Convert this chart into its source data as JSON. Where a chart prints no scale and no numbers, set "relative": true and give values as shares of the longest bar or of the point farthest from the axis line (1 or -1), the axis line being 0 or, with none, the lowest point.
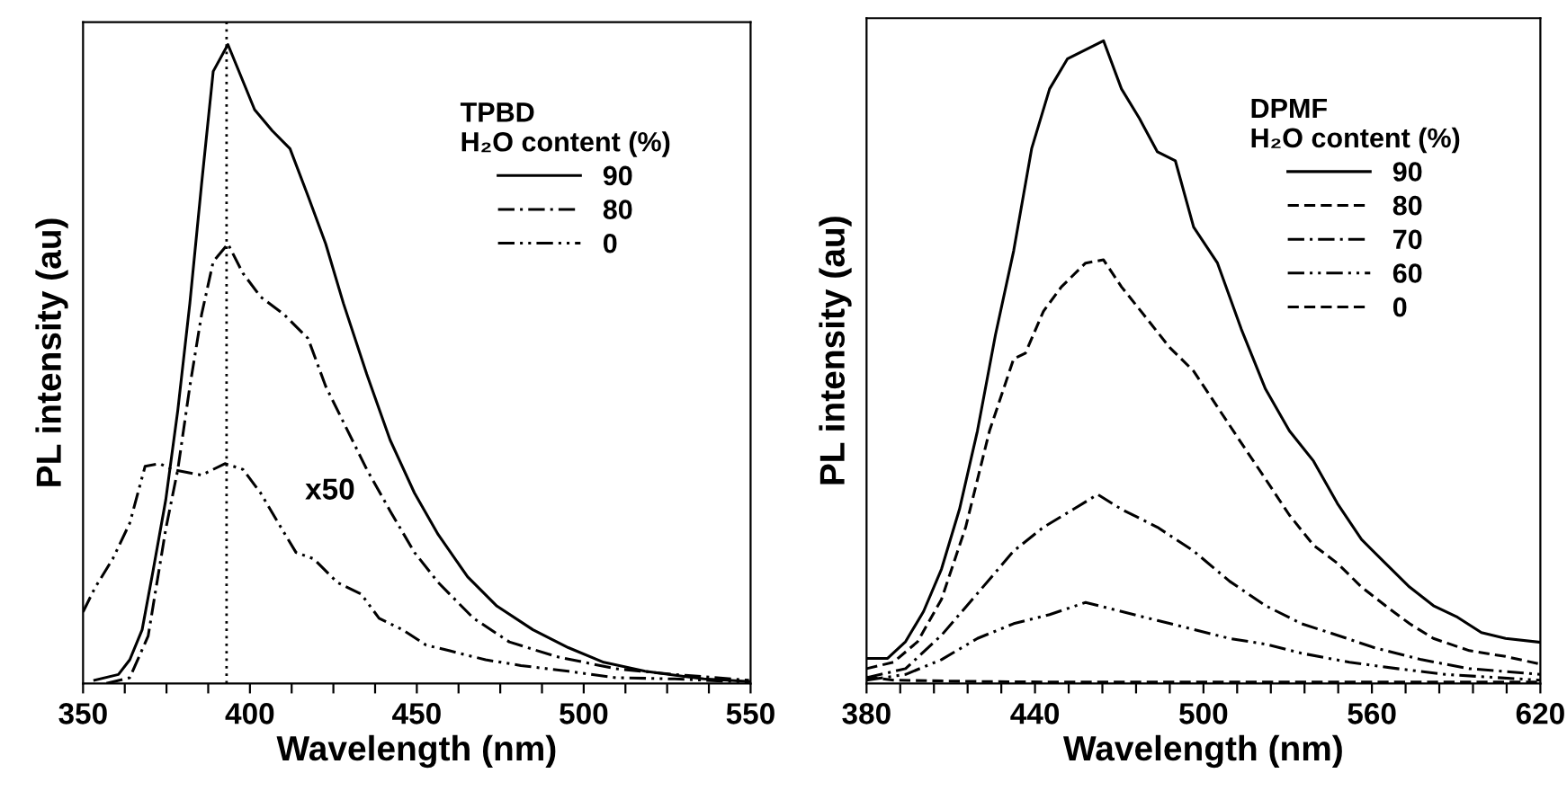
{
  "chart_data": [
    {
      "type": "line",
      "relative": true,
      "xlabel": "Wavelength (nm)",
      "ylabel": "PL intensity (au)",
      "legend_title": "TPBD\nH₂O content (%)",
      "legend": "top right",
      "grid": false,
      "tick_labels": "x",
      "marker": "none",
      "xlim": [
        350,
        550
      ],
      "xticks": [
        350,
        {
          "value": 362.5,
          "label": null
        },
        {
          "value": 375,
          "label": null
        },
        {
          "value": 387.5,
          "label": null
        },
        400,
        {
          "value": 412.5,
          "label": null
        },
        {
          "value": 425,
          "label": null
        },
        {
          "value": 437.5,
          "label": null
        },
        450,
        {
          "value": 462.5,
          "label": null
        },
        {
          "value": 475,
          "label": null
        },
        {
          "value": 487.5,
          "label": null
        },
        500,
        {
          "value": 512.5,
          "label": null
        },
        {
          "value": 525,
          "label": null
        },
        {
          "value": 537.5,
          "label": null
        },
        550
      ],
      "ref_lines": [
        {
          "axis": "x",
          "value": 393,
          "line_style": "dotted",
          "color": "#000000"
        }
      ],
      "annotations": [
        "x50"
      ],
      "series": [
        {
          "name": "90",
          "color": "#000000",
          "line_style": "solid",
          "x": [
            353.5,
            360.6,
            364,
            367.7,
            371,
            374.8,
            378.4,
            382,
            385.5,
            389,
            393.4,
            396,
            401.4,
            406.7,
            412,
            417.4,
            422.7,
            428,
            435,
            442,
            449.3,
            456.4,
            465.2,
            474,
            484.8,
            495.4,
            506,
            518.4,
            536,
            549.5
          ],
          "values": [
            0.005,
            0.014,
            0.037,
            0.084,
            0.177,
            0.288,
            0.428,
            0.595,
            0.781,
            0.958,
            1.0,
            0.967,
            0.898,
            0.865,
            0.837,
            0.763,
            0.688,
            0.595,
            0.484,
            0.381,
            0.298,
            0.233,
            0.167,
            0.121,
            0.084,
            0.056,
            0.033,
            0.019,
            0.007,
            0.003
          ]
        },
        {
          "name": "80",
          "color": "#000000",
          "line_style": "dashdot",
          "x": [
            357,
            364,
            369.5,
            374.8,
            378.4,
            382,
            385.5,
            389,
            393.4,
            397.9,
            403.2,
            410.3,
            417.4,
            422.7,
            428,
            435,
            442,
            449.3,
            456.4,
            467,
            477.7,
            491.8,
            509.6,
            527.3,
            549.5
          ],
          "values": [
            0.0,
            0.009,
            0.074,
            0.242,
            0.335,
            0.465,
            0.577,
            0.66,
            0.688,
            0.642,
            0.605,
            0.577,
            0.54,
            0.465,
            0.409,
            0.335,
            0.27,
            0.205,
            0.158,
            0.102,
            0.065,
            0.042,
            0.023,
            0.014,
            0.005
          ]
        },
        {
          "name": "0",
          "color": "#000000",
          "line_style": "dashdotdot",
          "x": [
            350,
            353.5,
            358.9,
            364,
            368.6,
            373,
            376.6,
            385.5,
            392.5,
            397.9,
            403.2,
            408.5,
            413.8,
            419.1,
            426.2,
            433.3,
            438.7,
            445.7,
            452.8,
            459.9,
            470.6,
            481.2,
            495.4,
            509.6,
            527.3,
            549.5
          ],
          "values": [
            0.112,
            0.149,
            0.195,
            0.251,
            0.34,
            0.344,
            0.335,
            0.326,
            0.344,
            0.335,
            0.298,
            0.251,
            0.205,
            0.195,
            0.158,
            0.14,
            0.102,
            0.084,
            0.06,
            0.051,
            0.037,
            0.028,
            0.019,
            0.009,
            0.007,
            0.002
          ]
        }
      ]
    },
    {
      "type": "line",
      "relative": true,
      "xlabel": "Wavelength (nm)",
      "ylabel": "PL intensity (au)",
      "legend_title": "DPMF\nH₂O content (%)",
      "legend": "top right",
      "grid": false,
      "tick_labels": "x",
      "marker": "none",
      "xlim": [
        380,
        620
      ],
      "xticks": [
        380,
        {
          "value": 392,
          "label": null
        },
        {
          "value": 404,
          "label": null
        },
        {
          "value": 416,
          "label": null
        },
        {
          "value": 428,
          "label": null
        },
        440,
        {
          "value": 452,
          "label": null
        },
        {
          "value": 464,
          "label": null
        },
        {
          "value": 476,
          "label": null
        },
        {
          "value": 488,
          "label": null
        },
        500,
        {
          "value": 512,
          "label": null
        },
        {
          "value": 524,
          "label": null
        },
        {
          "value": 536,
          "label": null
        },
        {
          "value": 548,
          "label": null
        },
        560,
        {
          "value": 572,
          "label": null
        },
        {
          "value": 584,
          "label": null
        },
        {
          "value": 596,
          "label": null
        },
        {
          "value": 608,
          "label": null
        },
        620
      ],
      "series": [
        {
          "name": "90",
          "color": "#000000",
          "line_style": "solid",
          "x": [
            380,
            387.5,
            393.9,
            400.3,
            406.7,
            413.1,
            419.5,
            425.9,
            432.4,
            438.8,
            445.2,
            451.6,
            458,
            464.4,
            470.8,
            477.2,
            483.6,
            490,
            496.5,
            505,
            513.5,
            522.1,
            530.6,
            539.2,
            547.7,
            556.3,
            564.8,
            573.4,
            581.9,
            590.5,
            599,
            607.6,
            620
          ],
          "values": [
            0.039,
            0.039,
            0.065,
            0.112,
            0.178,
            0.271,
            0.393,
            0.542,
            0.673,
            0.832,
            0.925,
            0.972,
            0.986,
            1.0,
            0.925,
            0.879,
            0.827,
            0.813,
            0.71,
            0.654,
            0.551,
            0.458,
            0.393,
            0.346,
            0.28,
            0.224,
            0.187,
            0.15,
            0.121,
            0.103,
            0.079,
            0.07,
            0.064
          ]
        },
        {
          "name": "80",
          "color": "#000000",
          "line_style": "dashed",
          "x": [
            380,
            389.6,
            398.2,
            406.7,
            415.3,
            423.8,
            432.4,
            436.6,
            443,
            449.4,
            458,
            464.4,
            470.8,
            479.4,
            487.9,
            496.5,
            505,
            513.5,
            522.1,
            530.6,
            539.2,
            547.7,
            556.3,
            564.8,
            573.4,
            581.9,
            594.7,
            607.6,
            620
          ],
          "values": [
            0.023,
            0.033,
            0.065,
            0.131,
            0.243,
            0.393,
            0.505,
            0.514,
            0.579,
            0.617,
            0.654,
            0.659,
            0.617,
            0.57,
            0.523,
            0.486,
            0.43,
            0.374,
            0.318,
            0.262,
            0.215,
            0.187,
            0.15,
            0.121,
            0.093,
            0.07,
            0.051,
            0.042,
            0.03
          ]
        },
        {
          "name": "70",
          "color": "#000000",
          "line_style": "dashdot",
          "x": [
            380,
            393.9,
            406.7,
            419.5,
            432.4,
            443,
            453.7,
            462.3,
            470.8,
            483.6,
            496.5,
            509.3,
            522.1,
            534.9,
            547.7,
            560.6,
            577.6,
            594.7,
            620
          ],
          "values": [
            0.009,
            0.023,
            0.075,
            0.14,
            0.206,
            0.243,
            0.271,
            0.294,
            0.271,
            0.243,
            0.206,
            0.159,
            0.121,
            0.093,
            0.075,
            0.056,
            0.037,
            0.023,
            0.014
          ]
        },
        {
          "name": "60",
          "color": "#000000",
          "line_style": "dashdotdot",
          "x": [
            380,
            393.9,
            406.7,
            419.5,
            432.4,
            445.2,
            458,
            470.8,
            483.6,
            496.5,
            509.3,
            522.1,
            534.9,
            552,
            569.1,
            586.2,
            620
          ],
          "values": [
            0.005,
            0.014,
            0.037,
            0.07,
            0.093,
            0.107,
            0.126,
            0.112,
            0.098,
            0.084,
            0.07,
            0.061,
            0.047,
            0.033,
            0.023,
            0.014,
            0.005
          ]
        },
        {
          "name": "0",
          "color": "#000000",
          "line_style": "dashed",
          "x": [
            380,
            390,
            420,
            450,
            500,
            560,
            620
          ],
          "values": [
            0.01,
            0.005,
            0.003,
            0.002,
            0.002,
            0.002,
            0.002
          ]
        }
      ]
    }
  ]
}
